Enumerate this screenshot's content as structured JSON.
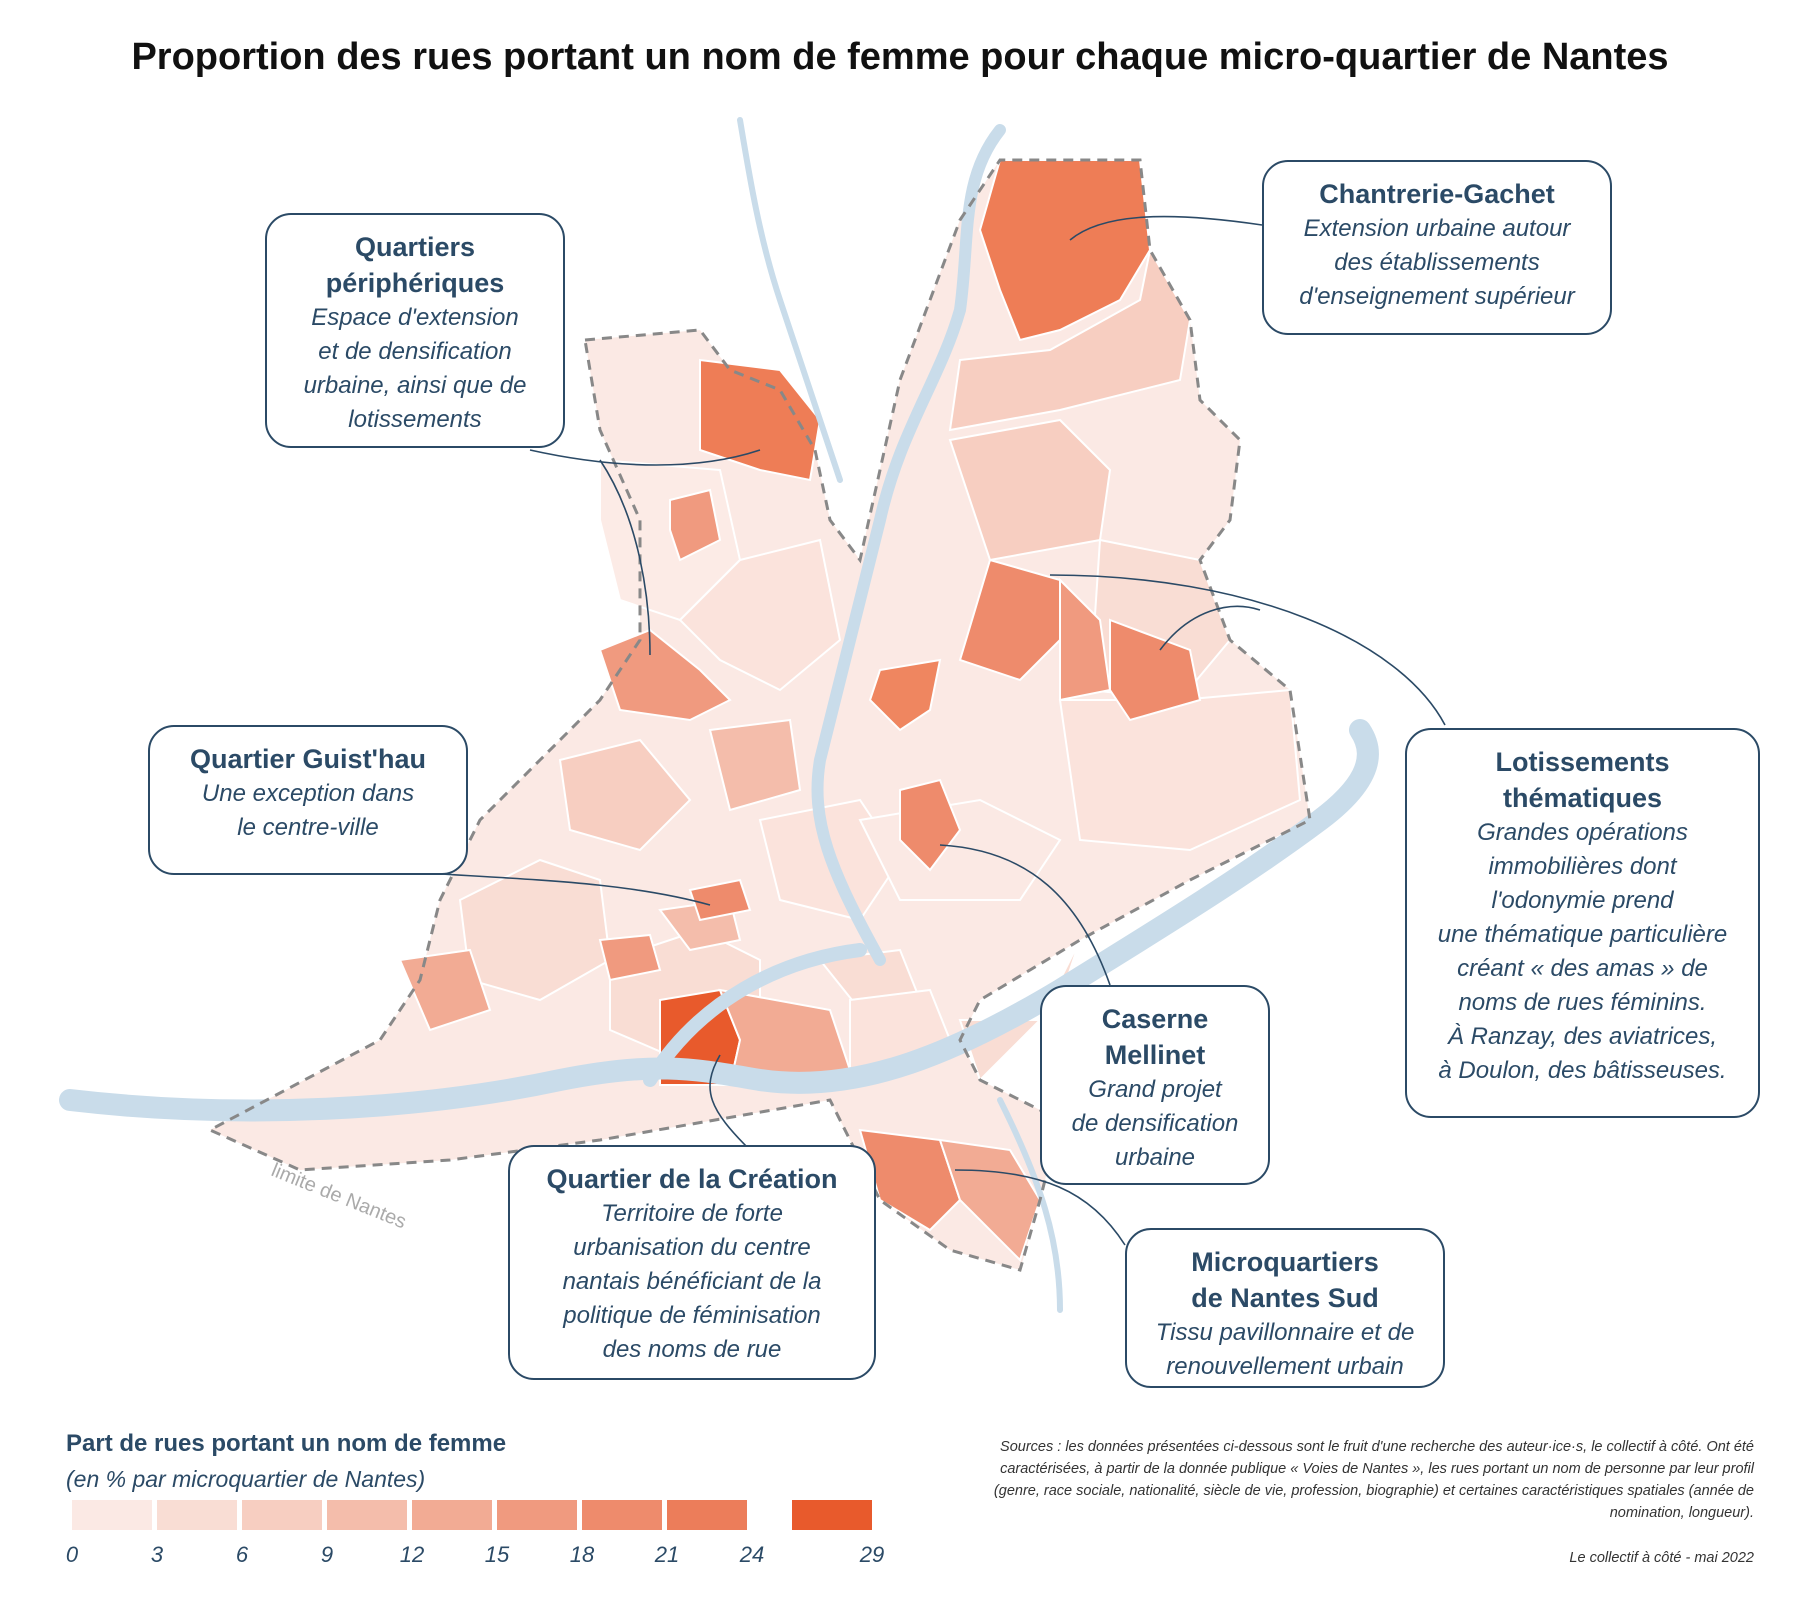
{
  "title": "Proportion des rues portant un nom de femme pour chaque micro-quartier de Nantes",
  "boundary_label": "limite de Nantes",
  "callouts": [
    {
      "id": "peripheriques",
      "title": "Quartiers\npériphériques",
      "desc": "Espace d'extension\net de densification\nurbaine, ainsi que de\nlotissements"
    },
    {
      "id": "chantrerie",
      "title": "Chantrerie-Gachet",
      "desc": "Extension urbaine autour\ndes établissements\nd'enseignement supérieur"
    },
    {
      "id": "guisthau",
      "title": "Quartier Guist'hau",
      "desc": "Une exception dans\nle centre-ville"
    },
    {
      "id": "lotissements",
      "title": "Lotissements\nthématiques",
      "desc": "Grandes opérations\nimmobilières dont\nl'odonymie prend\nune thématique particulière\ncréant « des amas » de\nnoms de rues féminins.\nÀ Ranzay, des aviatrices,\nà Doulon, des bâtisseuses."
    },
    {
      "id": "mellinet",
      "title": "Caserne\nMellinet",
      "desc": "Grand projet\nde densification\nurbaine"
    },
    {
      "id": "creation",
      "title": "Quartier de la Création",
      "desc": "Territoire de forte\nurbanisation du centre\nnantais bénéficiant de la\npolitique de féminisation\ndes noms de rue"
    },
    {
      "id": "sud",
      "title": "Microquartiers\nde Nantes Sud",
      "desc": "Tissu pavillonnaire et de\nrenouvellement urbain"
    }
  ],
  "legend": {
    "title": "Part de rues portant un nom de femme",
    "subtitle": "(en % par microquartier de Nantes)",
    "classes": [
      {
        "from": 0,
        "to": 3,
        "color": "#fbe9e4"
      },
      {
        "from": 3,
        "to": 6,
        "color": "#f9ddd4"
      },
      {
        "from": 6,
        "to": 9,
        "color": "#f7cec1"
      },
      {
        "from": 9,
        "to": 12,
        "color": "#f4bdab"
      },
      {
        "from": 12,
        "to": 15,
        "color": "#f2ab94"
      },
      {
        "from": 15,
        "to": 18,
        "color": "#f09a7f"
      },
      {
        "from": 18,
        "to": 21,
        "color": "#ee8b6c"
      },
      {
        "from": 21,
        "to": 24,
        "color": "#ec7d5a"
      },
      {
        "from": 24,
        "to": 29,
        "color": "#e85a2c"
      }
    ],
    "ticks": [
      "0",
      "3",
      "6",
      "9",
      "12",
      "15",
      "18",
      "21",
      "24",
      "29"
    ]
  },
  "sources": "Sources : les données présentées ci-dessous sont le fruit d'une recherche des auteur·ice·s, le collectif à côté. Ont été caractérisées, à partir de la donnée publique « Voies de Nantes », les rues portant un nom de personne par leur profil (genre, race sociale, nationalité, siècle de vie, profession, biographie) et certaines caractéristiques spatiales (année de nomination, longueur).",
  "credit": "Le collectif à côté - mai 2022",
  "colors": {
    "text": "#2b4a66",
    "river": "#c9dcea",
    "boundary": "#888888"
  }
}
